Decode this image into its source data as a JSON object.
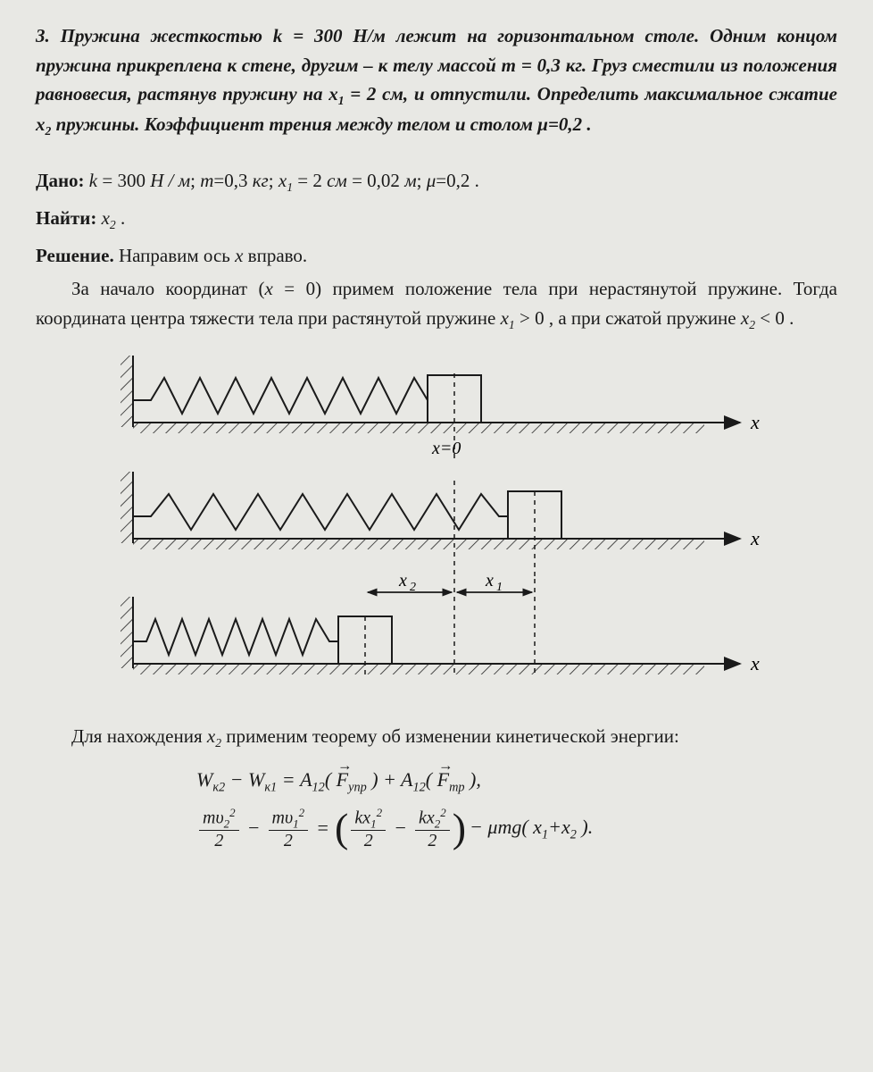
{
  "problem": {
    "number": "3.",
    "text_html": "Пружина жесткостью <i>k</i> = 300 <i>Н/м</i> лежит на горизонтальном столе. Одним концом пружина прикреплена к стене, другим – к телу массой <i>m</i> = 0,3 <i>кг</i>. Груз сместили из положения равновесия, растянув пружину на <i>x<sub>1</sub></i> = 2 <i>см</i>, и отпустили. Определить максимальное сжатие <i>x<sub>2</sub></i> пружины. Коэффициент трения между телом и столом <i>μ</i>=0,2 ."
  },
  "given": {
    "label": "Дано:",
    "content_html": "<i>k</i> = 300 <i>Н / м</i>; <i>m</i>=0,3 <i>кг</i>; <i>x</i><sub>1</sub> = 2 <i>см</i> = 0,02 <i>м</i>; <i>μ</i>=0,2 ."
  },
  "find": {
    "label": "Найти:",
    "content_html": "<i>x</i><sub>2</sub> ."
  },
  "solution": {
    "label": "Решение.",
    "line1": " Направим ось <i>x</i> вправо.",
    "line2_html": "За начало координат (<i>x</i> = 0) примем положение тела при нерастянутой пружине. Тогда координата центра тяжести тела при растянутой пружине <i>x</i><sub>1</sub> > 0 , а при сжатой пружине <i>x</i><sub>2</sub> < 0 .",
    "after_diagram_html": "Для нахождения <i>x</i><sub>2</sub> применим теорему об изменении кинетической энергии:"
  },
  "diagram": {
    "axis_label": "x",
    "x_eq_zero": "x=0",
    "x1_label": "x₁",
    "x2_label": "x₂",
    "stroke": "#1a1a1a"
  },
  "equations": {
    "eq1": {
      "lhs1": "W",
      "lhs1_sub": "к2",
      "minus": " − ",
      "lhs2": "W",
      "lhs2_sub": "к1",
      "eq": " = ",
      "A1": "A",
      "A1_sub": "12",
      "F1": "F",
      "F1_sub": "упр",
      "plus": " + ",
      "A2": "A",
      "A2_sub": "12",
      "F2": "F",
      "F2_sub": "mp",
      "end": ","
    },
    "eq2": {
      "minus": " − ",
      "eq": " = ",
      "rhs_minus": " − ",
      "mu_mg": "μmg( x",
      "x1s": "1",
      "plus": "+x",
      "x2s": "2",
      "close": " )."
    }
  }
}
